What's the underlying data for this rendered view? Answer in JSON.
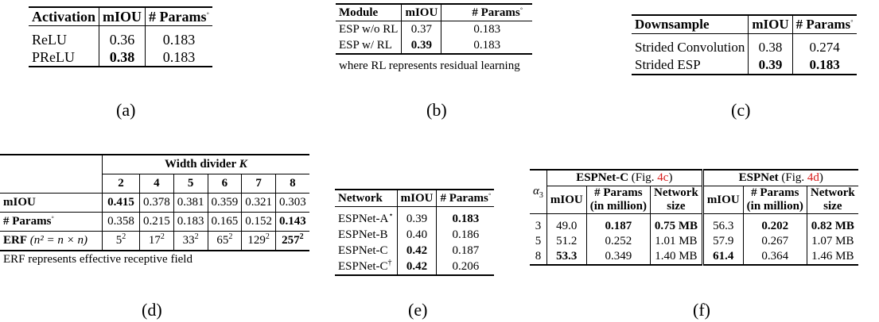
{
  "panels": {
    "a": {
      "caption": "(a)",
      "headers": [
        "Activation",
        "mIOU",
        "# Params",
        "◦"
      ],
      "rows": [
        [
          "ReLU",
          "0.36",
          "0.183"
        ],
        [
          "PReLU",
          "0.38",
          "0.183"
        ]
      ]
    },
    "b": {
      "caption": "(b)",
      "headers": [
        "Module",
        "mIOU",
        "# Params",
        "◦"
      ],
      "rows": [
        [
          "ESP w/o RL",
          "0.37",
          "0.183"
        ],
        [
          "ESP w/ RL",
          "0.39",
          "0.183"
        ]
      ],
      "note": "where RL represents residual learning"
    },
    "c": {
      "caption": "(c)",
      "headers": [
        "Downsample",
        "mIOU",
        "# Params",
        "◦"
      ],
      "rows": [
        [
          "Strided Convolution",
          "0.38",
          "0.274"
        ],
        [
          "Strided ESP",
          "0.39",
          "0.183"
        ]
      ]
    },
    "d": {
      "caption": "(d)",
      "group_header": "Width divider ",
      "group_var": "K",
      "k_values": [
        "2",
        "4",
        "5",
        "6",
        "7",
        "8"
      ],
      "row_miou": {
        "label": "mIOU",
        "values": [
          "0.415",
          "0.378",
          "0.381",
          "0.359",
          "0.321",
          "0.303"
        ]
      },
      "row_params": {
        "label": "# Params",
        "sup": "◦",
        "values": [
          "0.358",
          "0.215",
          "0.183",
          "0.165",
          "0.152",
          "0.143"
        ]
      },
      "row_erf": {
        "label": "ERF",
        "label_paren": "(n² = n × n)",
        "bases": [
          "5",
          "17",
          "33",
          "65",
          "129",
          "257"
        ],
        "exp": "2"
      },
      "note": "ERF represents effective receptive field"
    },
    "e": {
      "caption": "(e)",
      "headers": [
        "Network",
        "mIOU",
        "# Params",
        "◦"
      ],
      "rows": [
        {
          "name": "ESPNet-A",
          "sup": "⋆",
          "miou": "0.39",
          "params": "0.183"
        },
        {
          "name": "ESPNet-B",
          "sup": "",
          "miou": "0.40",
          "params": "0.186"
        },
        {
          "name": "ESPNet-C",
          "sup": "",
          "miou": "0.42",
          "params": "0.187"
        },
        {
          "name": "ESPNet-C",
          "sup": "†",
          "miou": "0.42",
          "params": "0.206"
        }
      ]
    },
    "f": {
      "caption": "(f)",
      "alpha": "α",
      "alpha_sub": "3",
      "group1": {
        "name": "ESPNet-C",
        "fig_prefix": " (Fig. ",
        "fig_ref": "4c",
        "fig_suffix": ")"
      },
      "group2": {
        "name": "ESPNet",
        "fig_prefix": " (Fig. ",
        "fig_ref": "4d",
        "fig_suffix": ")"
      },
      "sub_headers": {
        "miou": "mIOU",
        "params_l1": "# Params",
        "params_l2": "(in million)",
        "size_l1": "Network",
        "size_l2": "size"
      },
      "rows": [
        [
          "3",
          "49.0",
          "0.187",
          "0.75 MB",
          "56.3",
          "0.202",
          "0.82 MB"
        ],
        [
          "5",
          "51.2",
          "0.252",
          "1.01 MB",
          "57.9",
          "0.267",
          "1.07 MB"
        ],
        [
          "8",
          "53.3",
          "0.349",
          "1.40 MB",
          "61.4",
          "0.364",
          "1.46 MB"
        ]
      ]
    }
  }
}
